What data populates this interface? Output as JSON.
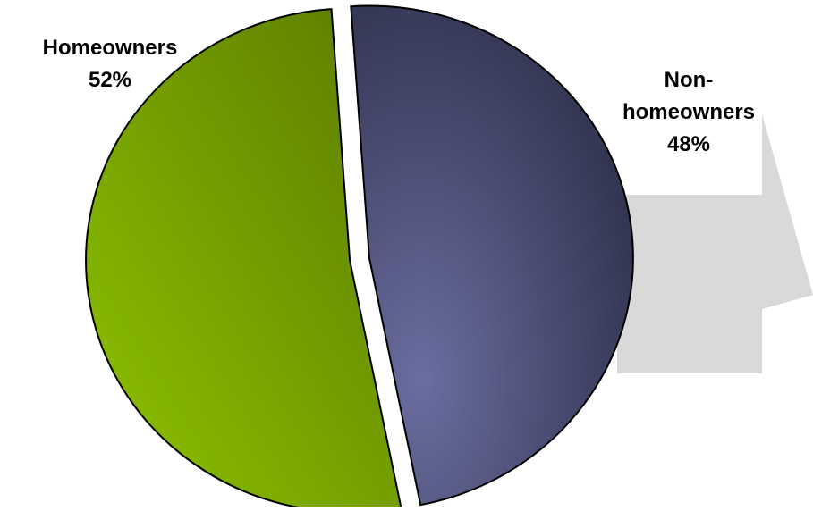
{
  "colors": {
    "background": "#ffffff",
    "arrow": "#d9d9d9",
    "outline": "#000000",
    "homeowners_light": "#8fc400",
    "homeowners_dark": "#5a7a00",
    "non_homeowners_light": "#6a6ea0",
    "non_homeowners_dark": "#2c2e48"
  },
  "chart_data": {
    "type": "pie",
    "categories": [
      "Homeowners",
      "Non-homeowners"
    ],
    "values": [
      52,
      48
    ],
    "unit": "%",
    "slices": [
      {
        "label_line1": "Homeowners",
        "label_line2": "",
        "percent_text": "52%"
      },
      {
        "label_line1": "Non-",
        "label_line2": "homeowners",
        "percent_text": "48%"
      }
    ],
    "exploded": true,
    "background_shape": "arrow-right"
  }
}
